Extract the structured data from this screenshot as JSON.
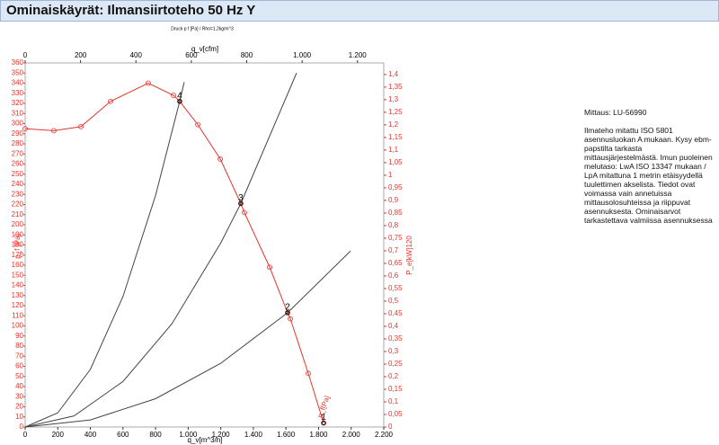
{
  "header": {
    "title": "Ominaiskäyrät: Ilmansiirtoteho 50 Hz Y"
  },
  "note": {
    "measurement": "Mittaus: LU-56990",
    "text": "Ilmateho mitattu ISO 5801 asennusluokan A mukaan. Kysy ebm-papstilta tarkasta mittausjärjestelmästä. Imun puoleinen melutaso: LwA  ISO 13347 mukaan / LpA mitattuna 1 metrin etäisyydellä tuulettimen akselista. Tiedot ovat voimassa vain annetuissa mittausolosuhteissa ja riippuvat asennuksesta. Ominaisarvot tarkastettava valmiissa asennuksessa"
  },
  "chart_data": {
    "type": "line",
    "subtitle": "Druck p f [Pa] / Rho=1.2kg/m^3",
    "x_label": "q_v[m^3/h]",
    "x2_label": "q_v[cfm]",
    "y_label": "p_f [Pa]",
    "y2_label": "P_e[kW]120",
    "xlim": [
      0,
      2200
    ],
    "xticks": [
      0,
      200,
      400,
      600,
      800,
      {
        "value": 1000,
        "label": "1.000"
      },
      {
        "value": 1200,
        "label": "1.200"
      },
      {
        "value": 1400,
        "label": "1.400"
      },
      {
        "value": 1600,
        "label": "1.600"
      },
      {
        "value": 1800,
        "label": "1.800"
      },
      {
        "value": 2000,
        "label": "2.000"
      },
      {
        "value": 2200,
        "label": "2.200"
      }
    ],
    "x2lim": [
      0,
      1294.9
    ],
    "x2ticks": [
      0,
      200,
      400,
      600,
      800,
      {
        "value": 1000,
        "label": "1.000"
      },
      {
        "value": 1200,
        "label": "1.200"
      }
    ],
    "ylim": [
      0,
      360
    ],
    "yticks": [
      0,
      10,
      20,
      30,
      40,
      50,
      60,
      70,
      80,
      90,
      100,
      110,
      120,
      130,
      140,
      150,
      160,
      170,
      180,
      190,
      200,
      210,
      220,
      230,
      240,
      250,
      260,
      270,
      280,
      290,
      300,
      310,
      320,
      330,
      340,
      350,
      360
    ],
    "y2lim": [
      0,
      1.446
    ],
    "y2ticks": [
      0,
      {
        "value": 0.05,
        "label": "0,05"
      },
      {
        "value": 0.1,
        "label": "0,1"
      },
      {
        "value": 0.15,
        "label": "0,15"
      },
      {
        "value": 0.2,
        "label": "0,2"
      },
      {
        "value": 0.25,
        "label": "0,25"
      },
      {
        "value": 0.3,
        "label": "0,3"
      },
      {
        "value": 0.35,
        "label": "0,35"
      },
      {
        "value": 0.4,
        "label": "0,4"
      },
      {
        "value": 0.45,
        "label": "0,45"
      },
      {
        "value": 0.5,
        "label": "0,5"
      },
      {
        "value": 0.55,
        "label": "0,55"
      },
      {
        "value": 0.6,
        "label": "0,6"
      },
      {
        "value": 0.65,
        "label": "0,65"
      },
      {
        "value": 0.7,
        "label": "0,7"
      },
      {
        "value": 0.75,
        "label": "0,75"
      },
      {
        "value": 0.8,
        "label": "0,8"
      },
      {
        "value": 0.85,
        "label": "0,85"
      },
      {
        "value": 0.9,
        "label": "0,9"
      },
      {
        "value": 0.95,
        "label": "0,95"
      },
      1,
      {
        "value": 1.05,
        "label": "1,05"
      },
      {
        "value": 1.1,
        "label": "1,1"
      },
      {
        "value": 1.15,
        "label": "1,15"
      },
      {
        "value": 1.2,
        "label": "1,2"
      },
      {
        "value": 1.25,
        "label": "1,25"
      },
      {
        "value": 1.3,
        "label": "1,3"
      },
      {
        "value": 1.35,
        "label": "1,35"
      },
      {
        "value": 1.4,
        "label": "1,4"
      }
    ],
    "grid": false,
    "series": [
      {
        "name": "p_f[Pa]",
        "color": "#e8322a",
        "markers": true,
        "x": [
          0,
          176,
          342,
          524,
          755,
          910,
          948,
          1059,
          1197,
          1323,
          1345,
          1500,
          1610,
          1627,
          1737,
          1831
        ],
        "values": [
          295,
          293,
          297,
          322,
          340,
          328,
          322,
          299,
          265,
          221,
          212,
          158,
          113,
          107,
          53,
          4
        ]
      },
      {
        "color": "#444444",
        "markers": false,
        "x": [
          0,
          200,
          400,
          600,
          800,
          948,
          976
        ],
        "values": [
          0,
          14,
          57,
          129,
          229,
          322,
          341
        ]
      },
      {
        "color": "#444444",
        "markers": false,
        "x": [
          0,
          300,
          600,
          900,
          1200,
          1323,
          1665
        ],
        "values": [
          0,
          11,
          45,
          102,
          182,
          221,
          350
        ]
      },
      {
        "color": "#444444",
        "markers": false,
        "x": [
          0,
          400,
          800,
          1200,
          1610,
          1996
        ],
        "values": [
          0,
          7,
          28,
          63,
          113,
          174
        ]
      }
    ],
    "annotations": [
      {
        "text": "1",
        "x": 1831,
        "y": 4
      },
      {
        "text": "2",
        "x": 1610,
        "y": 113
      },
      {
        "text": "3",
        "x": 1323,
        "y": 221
      },
      {
        "text": "4",
        "x": 948,
        "y": 322
      }
    ]
  }
}
